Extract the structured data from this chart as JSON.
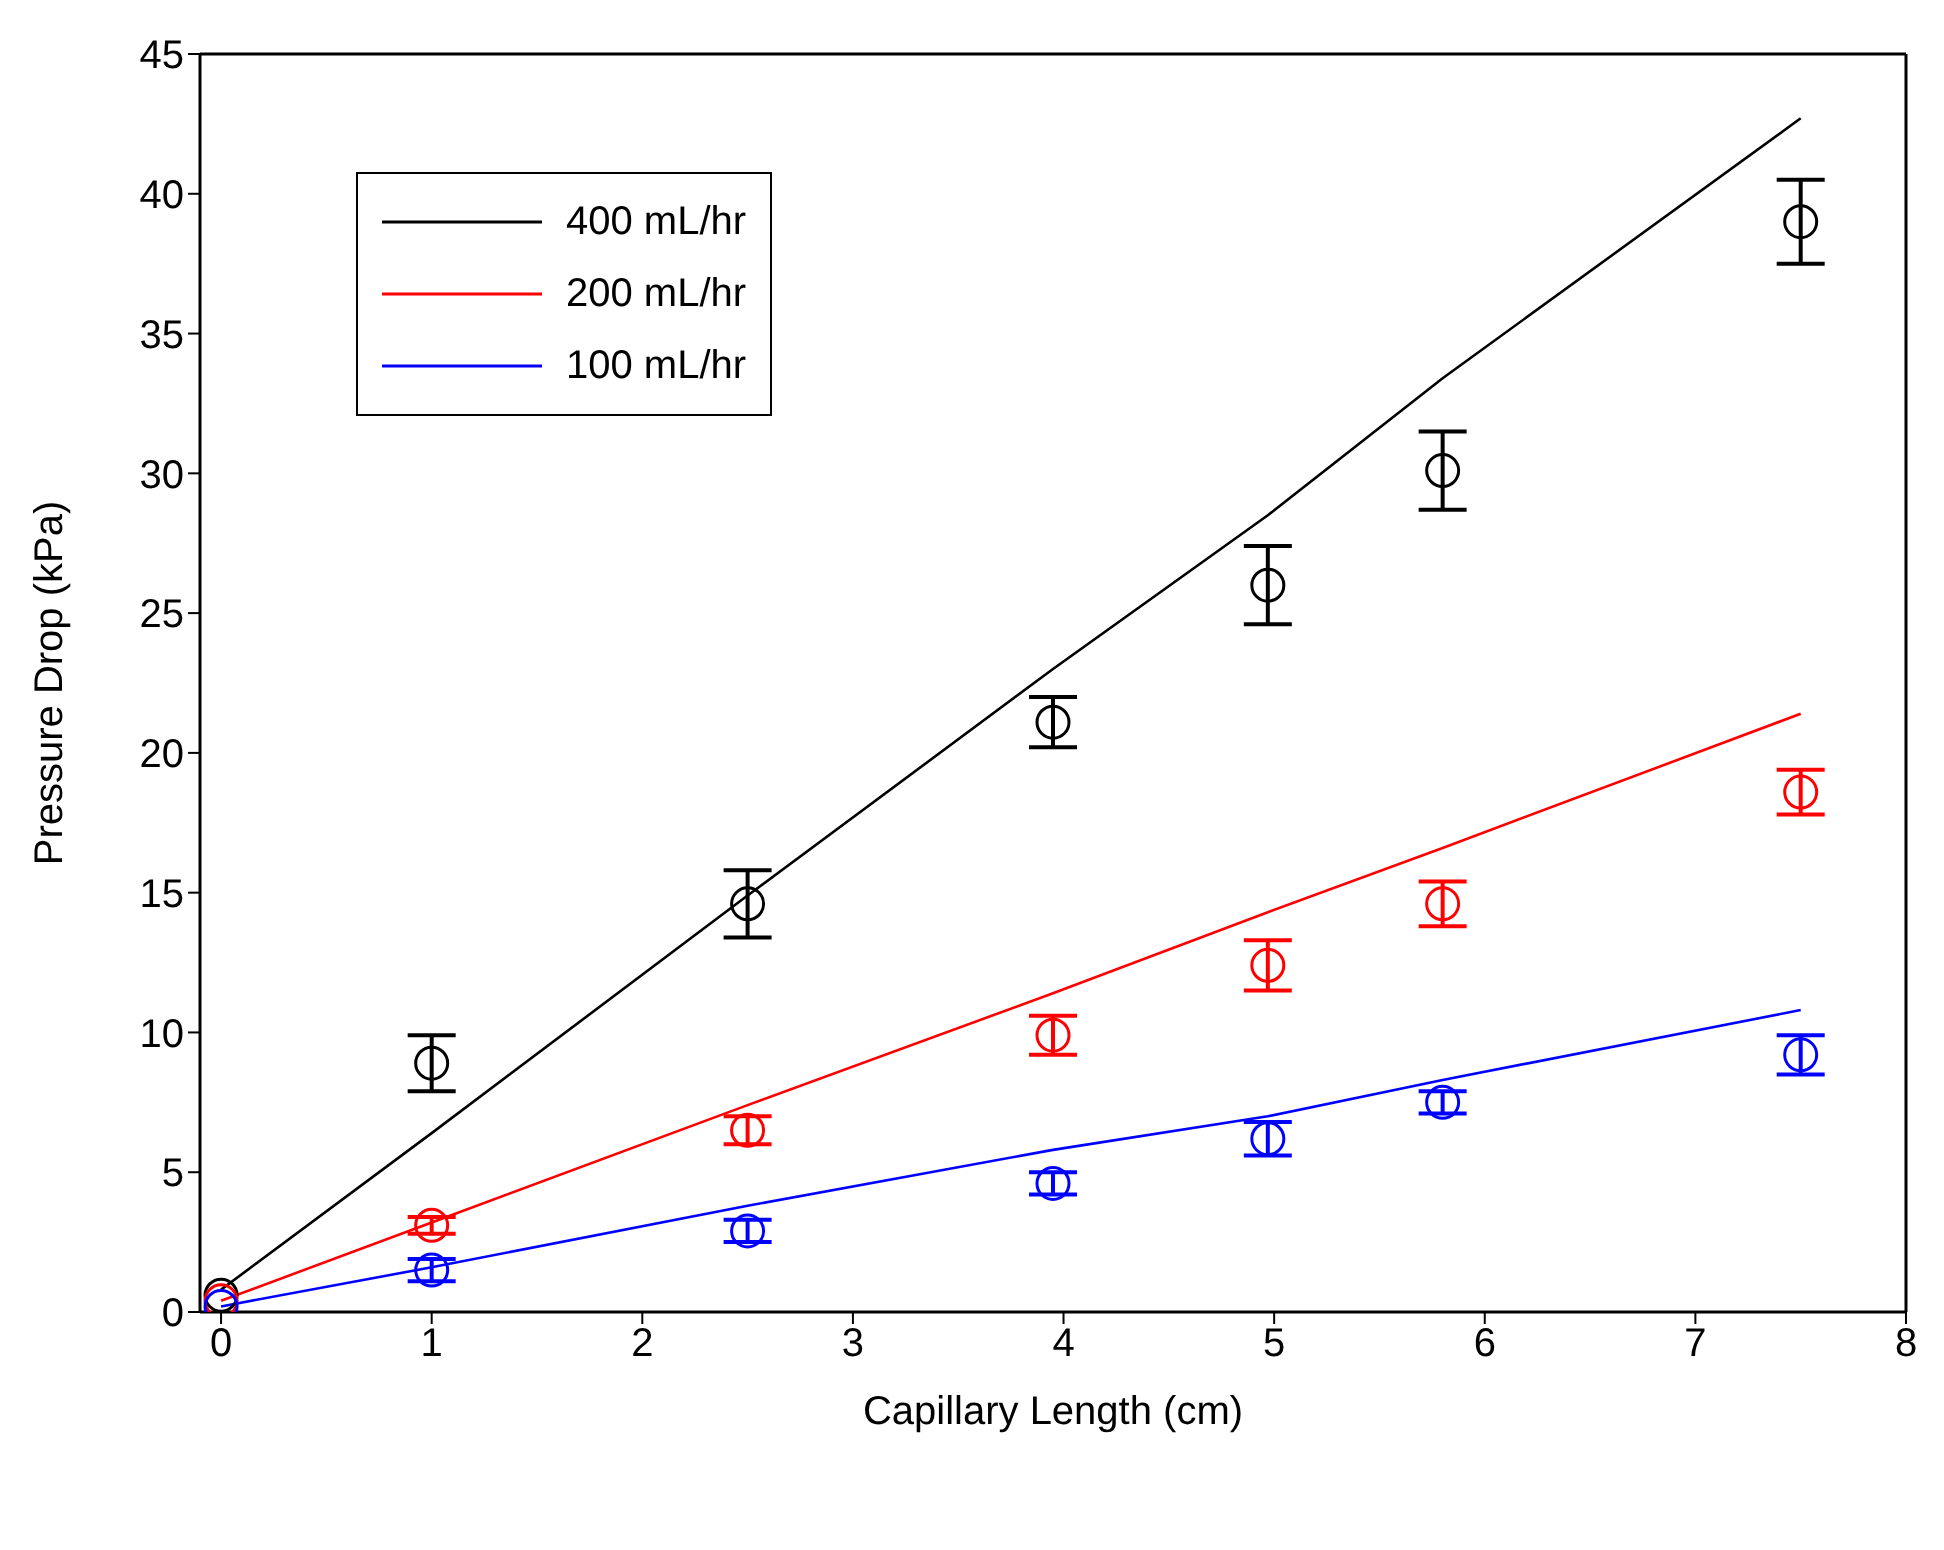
{
  "chart_data": {
    "type": "scatter",
    "xlabel": "Capillary Length (cm)",
    "ylabel": "Pressure Drop (kPa)",
    "xlim": [
      -0.1,
      8
    ],
    "xticks": [
      0,
      1,
      2,
      3,
      4,
      5,
      6,
      7,
      8
    ],
    "ylim": [
      0,
      45
    ],
    "yticks": [
      0,
      5,
      10,
      15,
      20,
      25,
      30,
      35,
      40,
      45
    ],
    "grid": false,
    "legend": "top left",
    "series": [
      {
        "name": "400 mL/hr",
        "type": "line",
        "color": "#000000",
        "marker": "none",
        "x": [
          0,
          1,
          2.5,
          3.95,
          4.97,
          5.8,
          7.5
        ],
        "values": [
          0.8,
          6.4,
          14.9,
          23.0,
          28.5,
          33.4,
          42.7
        ]
      },
      {
        "name": "200 mL/hr",
        "type": "line",
        "color": "#ff0000",
        "marker": "none",
        "x": [
          0,
          1,
          2.5,
          3.95,
          4.97,
          5.8,
          7.5
        ],
        "values": [
          0.4,
          3.2,
          7.4,
          11.4,
          14.3,
          16.6,
          21.4
        ]
      },
      {
        "name": "100 mL/hr",
        "type": "line",
        "color": "#0000ff",
        "marker": "none",
        "x": [
          0,
          1,
          2.5,
          3.95,
          4.97,
          5.8,
          7.5
        ],
        "values": [
          0.2,
          1.6,
          3.8,
          5.8,
          7.0,
          8.3,
          10.8
        ]
      },
      {
        "color": "#000000",
        "marker": "circle",
        "x": [
          0,
          1,
          2.5,
          3.95,
          4.97,
          5.8,
          7.5
        ],
        "values": [
          0.6,
          8.9,
          14.6,
          21.1,
          26.0,
          30.1,
          39.0
        ],
        "errors": [
          null,
          1.0,
          1.2,
          0.9,
          1.4,
          1.4,
          1.5
        ]
      },
      {
        "color": "#ff0000",
        "marker": "circle",
        "x": [
          0,
          1,
          2.5,
          3.95,
          4.97,
          5.8,
          7.5
        ],
        "values": [
          0.4,
          3.1,
          6.5,
          9.9,
          12.4,
          14.6,
          18.6
        ],
        "errors": [
          null,
          0.3,
          0.5,
          0.7,
          0.9,
          0.8,
          0.8
        ]
      },
      {
        "color": "#0000ff",
        "marker": "circle",
        "x": [
          0,
          1,
          2.5,
          3.95,
          4.97,
          5.8,
          7.5
        ],
        "values": [
          0.2,
          1.5,
          2.9,
          4.6,
          6.2,
          7.5,
          9.2
        ],
        "errors": [
          null,
          0.4,
          0.4,
          0.4,
          0.6,
          0.4,
          0.7
        ]
      }
    ]
  }
}
